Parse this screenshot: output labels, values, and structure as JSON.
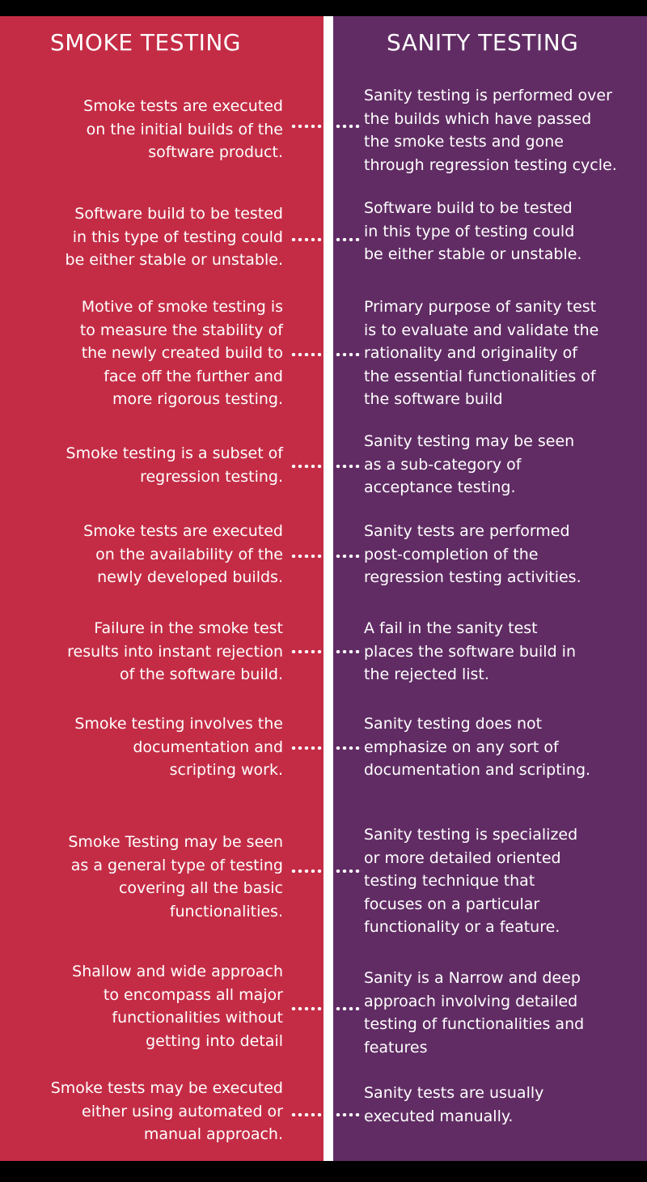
{
  "headers": {
    "left": "SMOKE TESTING",
    "right": "SANITY TESTING"
  },
  "rows": [
    {
      "smoke": "Smoke tests are executed\non the initial builds of the\nsoftware product.",
      "sanity": "Sanity testing is performed over\nthe builds which have passed\nthe smoke tests and gone\nthrough regression testing cycle."
    },
    {
      "smoke": "Software build to be tested\nin this type of testing could\nbe either stable or unstable.",
      "sanity": "Software build to be tested\nin this type of testing could\nbe either stable or unstable."
    },
    {
      "smoke": "Motive of smoke testing is\nto measure the stability of\nthe newly created build to\nface off the further and\nmore rigorous testing.",
      "sanity": "Primary purpose of sanity test\nis to evaluate and validate the\nrationality and originality of\nthe essential functionalities of\nthe software build"
    },
    {
      "smoke": "Smoke testing is a subset of\nregression testing.",
      "sanity": "Sanity testing may be seen\nas a sub-category of\nacceptance testing."
    },
    {
      "smoke": "Smoke tests are executed\non the availability of the\nnewly developed builds.",
      "sanity": "Sanity tests are performed\npost-completion of the\nregression testing activities."
    },
    {
      "smoke": "Failure in the smoke test\nresults into instant rejection\nof the software build.",
      "sanity": "A fail in the sanity test\nplaces the software build in\nthe rejected list."
    },
    {
      "smoke": "Smoke testing involves the\ndocumentation and\nscripting work.",
      "sanity": "Sanity testing does not\nemphasize on any sort of\ndocumentation and scripting."
    },
    {
      "smoke": "Smoke Testing may be seen\nas a general type of testing\ncovering all the basic\nfunctionalities.",
      "sanity": "Sanity testing is specialized\nor more detailed oriented\ntesting technique that\nfocuses on a particular\nfunctionality or a feature."
    },
    {
      "smoke": "Shallow and wide approach\nto encompass all major\nfunctionalities without\ngetting into detail",
      "sanity": "Sanity is a Narrow and deep\napproach involving detailed\ntesting of functionalities and\nfeatures"
    },
    {
      "smoke": "Smoke tests may be executed\neither using automated or\nmanual approach.",
      "sanity": "Sanity tests are usually\nexecuted manually."
    }
  ],
  "colors": {
    "smoke_column": "#c42c45",
    "sanity_column": "#612c64",
    "divider": "#ffffff",
    "text": "#ffffff"
  }
}
